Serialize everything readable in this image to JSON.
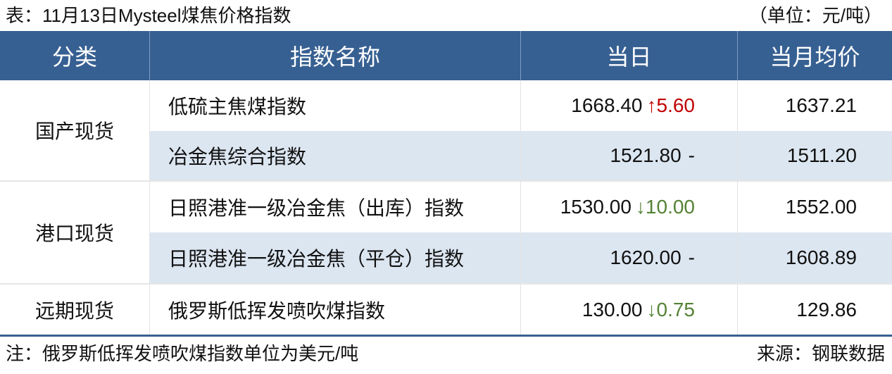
{
  "title": "表：11月13日Mysteel煤焦价格指数",
  "unit": "（单位：元/吨）",
  "headers": [
    "分类",
    "指数名称",
    "当日",
    "当月均价"
  ],
  "groups": [
    {
      "category": "国产现货",
      "rows": [
        {
          "name": "低硫主焦煤指数",
          "value": "1668.40",
          "change": "↑5.60",
          "direction": "up",
          "month_avg": "1637.21"
        },
        {
          "name": "冶金焦综合指数",
          "value": "1521.80",
          "change": "-",
          "direction": "flat",
          "month_avg": "1511.20"
        }
      ]
    },
    {
      "category": "港口现货",
      "rows": [
        {
          "name": "日照港准一级冶金焦（出库）指数",
          "value": "1530.00",
          "change": "↓10.00",
          "direction": "down",
          "month_avg": "1552.00"
        },
        {
          "name": "日照港准一级冶金焦（平仓）指数",
          "value": "1620.00",
          "change": "-",
          "direction": "flat",
          "month_avg": "1608.89"
        }
      ]
    },
    {
      "category": "远期现货",
      "rows": [
        {
          "name": "俄罗斯低挥发喷吹煤指数",
          "value": "130.00",
          "change": "↓0.75",
          "direction": "down",
          "month_avg": "129.86"
        }
      ]
    }
  ],
  "note": "注：俄罗斯低挥发喷吹煤指数单位为美元/吨",
  "source": "来源：钢联数据",
  "colors": {
    "header_bg": "#376092",
    "row_shade": "#dce6f1",
    "up": "#c00000",
    "down": "#548235"
  }
}
